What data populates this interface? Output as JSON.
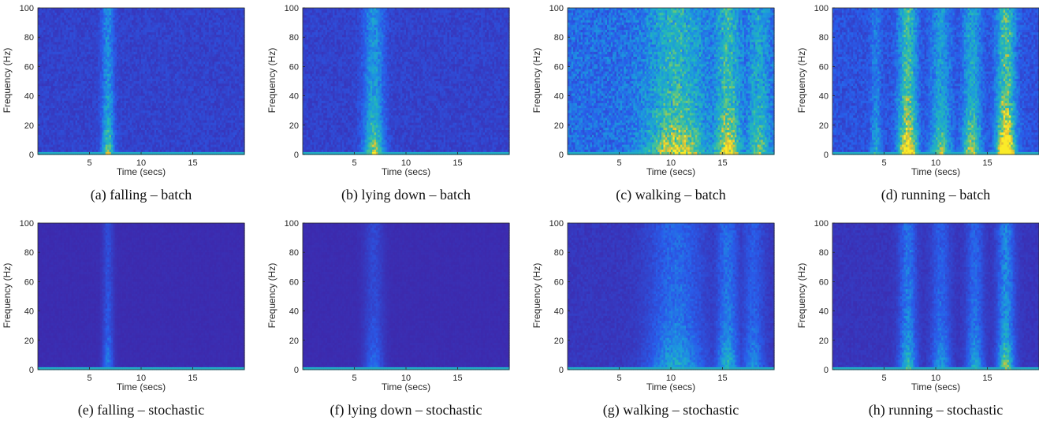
{
  "colors": {
    "low": "#3e26a8",
    "mid": "#2d8fe6",
    "high": "#24b9b6",
    "hot": "#f8c02a",
    "axis": "#262626"
  },
  "chart_data": [
    {
      "type": "heatmap",
      "caption": "(a) falling – batch",
      "xlabel": "Time (secs)",
      "ylabel": "Frequency (Hz)",
      "xlim": [
        0,
        20
      ],
      "ylim": [
        0,
        100
      ],
      "xticks": [
        5,
        10,
        15
      ],
      "yticks": [
        0,
        20,
        40,
        60,
        80,
        100
      ],
      "baseline": 0.13,
      "hot_bands": [
        {
          "center": 6.8,
          "width": 0.6,
          "intensity": 0.55
        }
      ]
    },
    {
      "type": "heatmap",
      "caption": "(b) lying down – batch",
      "xlabel": "Time (secs)",
      "ylabel": "Frequency (Hz)",
      "xlim": [
        0,
        20
      ],
      "ylim": [
        0,
        100
      ],
      "xticks": [
        5,
        10,
        15
      ],
      "yticks": [
        0,
        20,
        40,
        60,
        80,
        100
      ],
      "baseline": 0.13,
      "hot_bands": [
        {
          "center": 6.9,
          "width": 1.0,
          "intensity": 0.6
        }
      ]
    },
    {
      "type": "heatmap",
      "caption": "(c) walking – batch",
      "xlabel": "Time (secs)",
      "ylabel": "Frequency (Hz)",
      "xlim": [
        0,
        20
      ],
      "ylim": [
        0,
        100
      ],
      "xticks": [
        5,
        10,
        15
      ],
      "yticks": [
        0,
        20,
        40,
        60,
        80,
        100
      ],
      "baseline": 0.3,
      "hot_bands": [
        {
          "center": 10.5,
          "width": 2.8,
          "intensity": 0.55
        },
        {
          "center": 15.5,
          "width": 1.2,
          "intensity": 0.6
        },
        {
          "center": 18.5,
          "width": 1.0,
          "intensity": 0.4
        }
      ]
    },
    {
      "type": "heatmap",
      "caption": "(d) running – batch",
      "xlabel": "Time (secs)",
      "ylabel": "Frequency (Hz)",
      "xlim": [
        0,
        20
      ],
      "ylim": [
        0,
        100
      ],
      "xticks": [
        5,
        10,
        15
      ],
      "yticks": [
        0,
        20,
        40,
        60,
        80,
        100
      ],
      "baseline": 0.2,
      "hot_bands": [
        {
          "center": 4.2,
          "width": 0.5,
          "intensity": 0.3
        },
        {
          "center": 7.3,
          "width": 0.9,
          "intensity": 0.85
        },
        {
          "center": 10.5,
          "width": 1.0,
          "intensity": 0.5
        },
        {
          "center": 13.5,
          "width": 0.9,
          "intensity": 0.6
        },
        {
          "center": 16.8,
          "width": 0.9,
          "intensity": 0.95
        }
      ]
    },
    {
      "type": "heatmap",
      "caption": "(e) falling – stochastic",
      "xlabel": "Time (secs)",
      "ylabel": "Frequency (Hz)",
      "xlim": [
        0,
        20
      ],
      "ylim": [
        0,
        100
      ],
      "xticks": [
        5,
        10,
        15
      ],
      "yticks": [
        0,
        20,
        40,
        60,
        80,
        100
      ],
      "baseline": 0.03,
      "hot_bands": [
        {
          "center": 6.8,
          "width": 0.5,
          "intensity": 0.3
        }
      ]
    },
    {
      "type": "heatmap",
      "caption": "(f) lying down – stochastic",
      "xlabel": "Time (secs)",
      "ylabel": "Frequency (Hz)",
      "xlim": [
        0,
        20
      ],
      "ylim": [
        0,
        100
      ],
      "xticks": [
        5,
        10,
        15
      ],
      "yticks": [
        0,
        20,
        40,
        60,
        80,
        100
      ],
      "baseline": 0.03,
      "hot_bands": [
        {
          "center": 6.9,
          "width": 0.9,
          "intensity": 0.25
        }
      ]
    },
    {
      "type": "heatmap",
      "caption": "(g) walking – stochastic",
      "xlabel": "Time (secs)",
      "ylabel": "Frequency (Hz)",
      "xlim": [
        0,
        20
      ],
      "ylim": [
        0,
        100
      ],
      "xticks": [
        5,
        10,
        15
      ],
      "yticks": [
        0,
        20,
        40,
        60,
        80,
        100
      ],
      "baseline": 0.08,
      "hot_bands": [
        {
          "center": 10.5,
          "width": 2.5,
          "intensity": 0.4
        },
        {
          "center": 15.5,
          "width": 1.0,
          "intensity": 0.45
        },
        {
          "center": 18.0,
          "width": 1.0,
          "intensity": 0.3
        }
      ]
    },
    {
      "type": "heatmap",
      "caption": "(h) running – stochastic",
      "xlabel": "Time (secs)",
      "ylabel": "Frequency (Hz)",
      "xlim": [
        0,
        20
      ],
      "ylim": [
        0,
        100
      ],
      "xticks": [
        5,
        10,
        15
      ],
      "yticks": [
        0,
        20,
        40,
        60,
        80,
        100
      ],
      "baseline": 0.07,
      "hot_bands": [
        {
          "center": 7.3,
          "width": 0.8,
          "intensity": 0.5
        },
        {
          "center": 10.5,
          "width": 0.9,
          "intensity": 0.35
        },
        {
          "center": 13.8,
          "width": 0.8,
          "intensity": 0.4
        },
        {
          "center": 16.8,
          "width": 0.8,
          "intensity": 0.6
        }
      ]
    }
  ]
}
